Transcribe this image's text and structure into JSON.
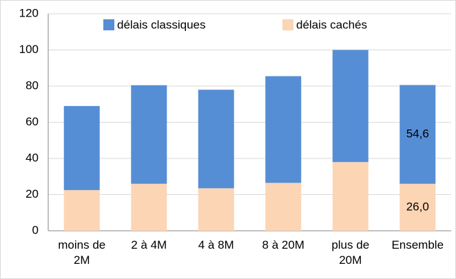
{
  "chart_data": {
    "type": "stacked_bar",
    "categories": [
      "moins de 2M",
      "2 à 4M",
      "4 à 8M",
      "8 à 20M",
      "plus de 20M",
      "Ensemble"
    ],
    "series": [
      {
        "name": "délais cachés",
        "color": "#fcd5b5",
        "values": [
          22.5,
          26,
          23.5,
          26.5,
          38,
          26.0
        ],
        "value_labels": [
          null,
          null,
          null,
          null,
          null,
          "26,0"
        ]
      },
      {
        "name": "délais classiques",
        "color": "#558ed5",
        "values": [
          46.5,
          54.5,
          54.5,
          59,
          62,
          54.6
        ],
        "value_labels": [
          null,
          null,
          null,
          null,
          null,
          "54,6"
        ]
      }
    ],
    "legend_order": [
      1,
      0
    ],
    "ylim": [
      0,
      120
    ],
    "yticks": [
      0,
      20,
      40,
      60,
      80,
      100,
      120
    ],
    "grid": true,
    "legend": "top"
  }
}
